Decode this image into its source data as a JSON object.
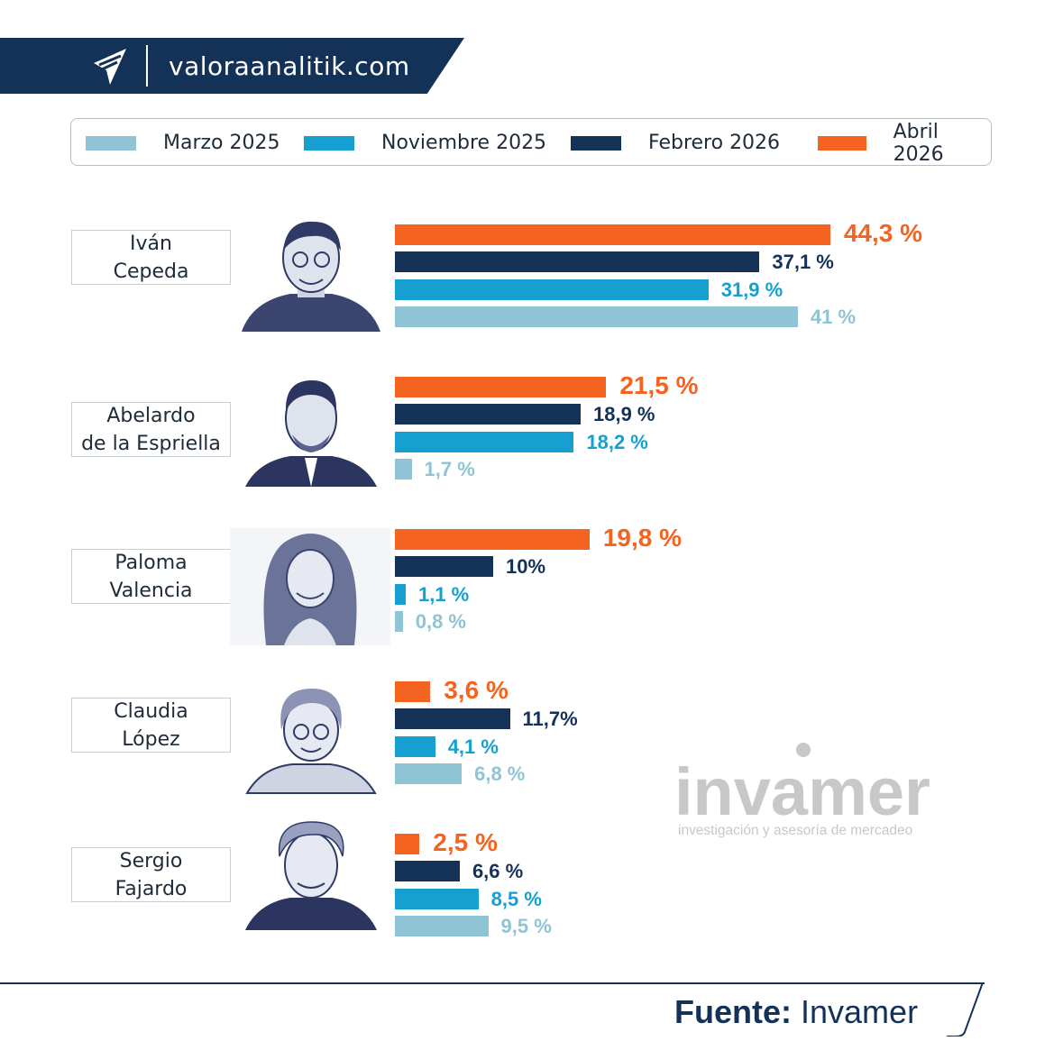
{
  "header": {
    "site": "valoraanalitik.com"
  },
  "legend": [
    {
      "label": "Marzo 2025",
      "color": "#8fc4d4"
    },
    {
      "label": "Noviembre 2025",
      "color": "#15a0cf"
    },
    {
      "label": "Febrero 2026",
      "color": "#143157"
    },
    {
      "label": "Abril 2026",
      "color": "#f4631f"
    }
  ],
  "chart_data": {
    "type": "bar",
    "orientation": "horizontal",
    "categories": [
      "Iván Cepeda",
      "Abelardo de la Espriella",
      "Paloma Valencia",
      "Claudia López",
      "Sergio Fajardo"
    ],
    "series": [
      {
        "name": "Abril 2026",
        "color": "#f4631f",
        "values": [
          44.3,
          21.5,
          19.8,
          3.6,
          2.5
        ],
        "labels": [
          "44,3 %",
          "21,5 %",
          "19,8 %",
          "3,6 %",
          "2,5 %"
        ]
      },
      {
        "name": "Febrero 2026",
        "color": "#143157",
        "values": [
          37.1,
          18.9,
          10,
          11.7,
          6.6
        ],
        "labels": [
          "37,1 %",
          "18,9 %",
          "10%",
          "11,7%",
          "6,6 %"
        ]
      },
      {
        "name": "Noviembre 2025",
        "color": "#15a0cf",
        "values": [
          31.9,
          18.2,
          1.1,
          4.1,
          8.5
        ],
        "labels": [
          "31,9 %",
          "18,2 %",
          "1,1 %",
          "4,1 %",
          "8,5 %"
        ]
      },
      {
        "name": "Marzo 2025",
        "color": "#8fc4d4",
        "values": [
          41,
          1.7,
          0.8,
          6.8,
          9.5
        ],
        "labels": [
          "41 %",
          "1,7 %",
          "0,8 %",
          "6,8 %",
          "9,5 %"
        ]
      }
    ]
  },
  "candidates": [
    {
      "line1": "Iván",
      "line2": "Cepeda"
    },
    {
      "line1": "Abelardo",
      "line2": "de la Espriella"
    },
    {
      "line1": "Paloma",
      "line2": "Valencia"
    },
    {
      "line1": "Claudia",
      "line2": "López"
    },
    {
      "line1": "Sergio",
      "line2": "Fajardo"
    }
  ],
  "watermark": {
    "brand": "invamer",
    "tagline": "investigación y asesoría de mercadeo"
  },
  "footer": {
    "source_key": "Fuente:",
    "source_value": "Invamer"
  }
}
